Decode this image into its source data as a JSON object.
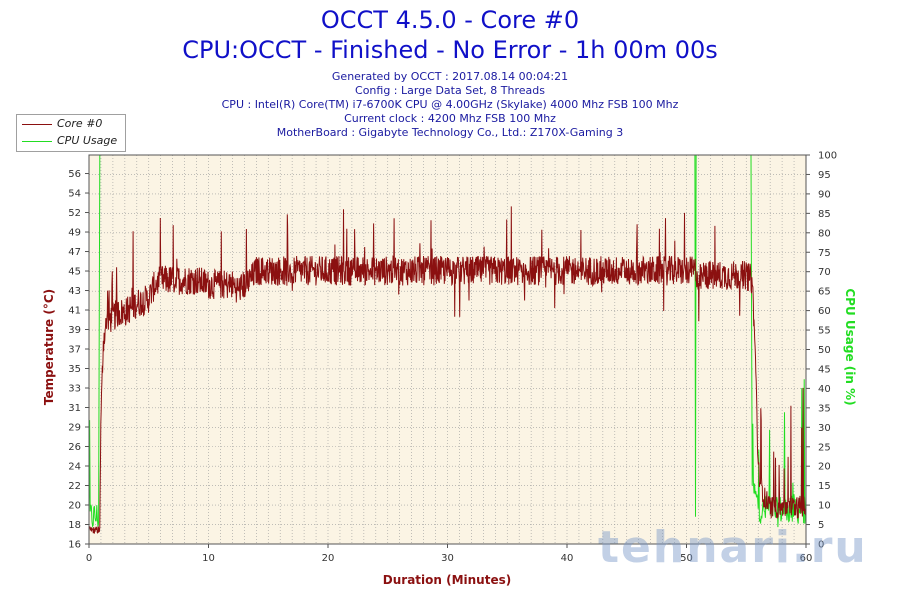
{
  "title_line1": "OCCT 4.5.0 - Core #0",
  "title_line2": "CPU:OCCT - Finished - No Error - 1h 00m 00s",
  "info_lines": [
    "Generated by OCCT : 2017.08.14 00:04:21",
    "Config : Large Data Set, 8 Threads",
    "CPU : Intel(R) Core(TM) i7-6700K CPU @ 4.00GHz (Skylake) 4000 Mhz FSB 100 Mhz",
    "Current clock : 4200 Mhz FSB 100 Mhz",
    "MotherBoard : Gigabyte Technology Co., Ltd.: Z170X-Gaming 3"
  ],
  "watermark": "tehnari.ru",
  "colors": {
    "temperature": "#8b1010",
    "cpu_usage": "#22dd22",
    "title": "#1010c8",
    "plot_bg": "#fbf4e4",
    "grid": "#9a9a9a"
  },
  "chart_data": {
    "type": "line",
    "xlabel": "Duration (Minutes)",
    "ylabel_left": "Temperature (°C)",
    "ylabel_right": "CPU Usage (in %)",
    "xlim": [
      0,
      60
    ],
    "ylim_left": [
      16,
      58
    ],
    "ylim_right": [
      0,
      100
    ],
    "x_ticks": [
      "0",
      "10",
      "20",
      "30",
      "40",
      "50",
      "60"
    ],
    "y_left_ticks": [
      "16",
      "18",
      "20",
      "22",
      "24",
      "26",
      "29",
      "31",
      "33",
      "35",
      "37",
      "39",
      "41",
      "43",
      "45",
      "47",
      "49",
      "52",
      "54",
      "56"
    ],
    "y_right_ticks": [
      "0",
      "5",
      "10",
      "15",
      "20",
      "25",
      "30",
      "35",
      "40",
      "45",
      "50",
      "55",
      "60",
      "65",
      "70",
      "75",
      "80",
      "85",
      "90",
      "95",
      "100"
    ],
    "grid": true,
    "legend_position": "top-left",
    "series": [
      {
        "name": "Core #0",
        "axis": "left",
        "points": [
          [
            0,
            17.5
          ],
          [
            0.9,
            17.5
          ],
          [
            1.0,
            30
          ],
          [
            1.2,
            38
          ],
          [
            1.5,
            40
          ],
          [
            2,
            40.5
          ],
          [
            2.5,
            41
          ],
          [
            3,
            41
          ],
          [
            3.5,
            41.5
          ],
          [
            4,
            42
          ],
          [
            5,
            42.5
          ],
          [
            5.5,
            44
          ],
          [
            6,
            44.5
          ],
          [
            7,
            44.5
          ],
          [
            8,
            44.5
          ],
          [
            9,
            44.5
          ],
          [
            10,
            44
          ],
          [
            11,
            44
          ],
          [
            12,
            44
          ],
          [
            12.5,
            43.5
          ],
          [
            13,
            44
          ],
          [
            13.5,
            44.5
          ],
          [
            14,
            45.5
          ],
          [
            15,
            45.5
          ],
          [
            20,
            45.5
          ],
          [
            25,
            45.5
          ],
          [
            30,
            45.5
          ],
          [
            35,
            45.5
          ],
          [
            40,
            45.5
          ],
          [
            45,
            45.5
          ],
          [
            50,
            45.5
          ],
          [
            50.8,
            45.5
          ],
          [
            51,
            44.5
          ],
          [
            51.5,
            45
          ],
          [
            52,
            45
          ],
          [
            53,
            45
          ],
          [
            54,
            45
          ],
          [
            55,
            45
          ],
          [
            55.5,
            44.5
          ],
          [
            55.8,
            35
          ],
          [
            56,
            24
          ],
          [
            56.5,
            21
          ],
          [
            57,
            20
          ],
          [
            58,
            20
          ],
          [
            59,
            20
          ],
          [
            60,
            20
          ]
        ]
      },
      {
        "name": "CPU Usage",
        "axis": "right",
        "points": [
          [
            0,
            7
          ],
          [
            0.8,
            7
          ],
          [
            0.9,
            100
          ],
          [
            50.7,
            100
          ],
          [
            50.75,
            7
          ],
          [
            50.8,
            100
          ],
          [
            55.4,
            100
          ],
          [
            55.5,
            15
          ],
          [
            56,
            10
          ],
          [
            56.5,
            8
          ],
          [
            57,
            10
          ],
          [
            57.5,
            8
          ],
          [
            58,
            9
          ],
          [
            59,
            9
          ],
          [
            60,
            9
          ]
        ]
      }
    ]
  }
}
